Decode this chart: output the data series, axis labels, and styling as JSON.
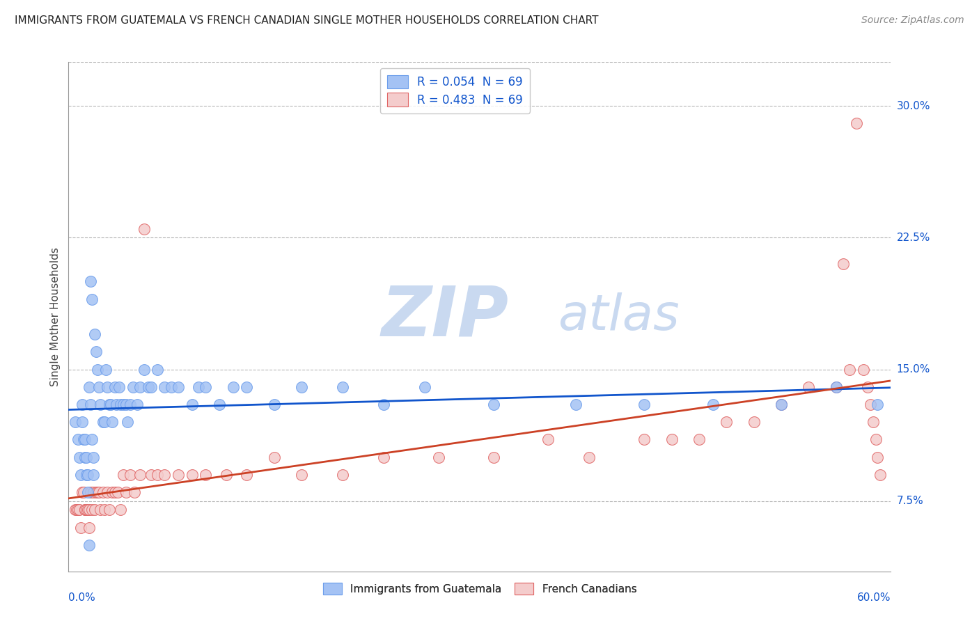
{
  "title": "IMMIGRANTS FROM GUATEMALA VS FRENCH CANADIAN SINGLE MOTHER HOUSEHOLDS CORRELATION CHART",
  "source": "Source: ZipAtlas.com",
  "ylabel": "Single Mother Households",
  "ytick_labels": [
    "7.5%",
    "15.0%",
    "22.5%",
    "30.0%"
  ],
  "ytick_values": [
    0.075,
    0.15,
    0.225,
    0.3
  ],
  "xlim": [
    0.0,
    0.6
  ],
  "ylim": [
    0.035,
    0.325
  ],
  "blue_label": "Immigrants from Guatemala",
  "pink_label": "French Canadians",
  "blue_R": "0.054",
  "pink_R": "0.483",
  "blue_N": "69",
  "pink_N": "69",
  "blue_color": "#a4c2f4",
  "pink_color": "#f4cccc",
  "blue_edge_color": "#6d9eeb",
  "pink_edge_color": "#e06666",
  "blue_line_color": "#1155cc",
  "pink_line_color": "#cc4125",
  "label_color": "#1155cc",
  "watermark_zip_color": "#c9d9f0",
  "watermark_atlas_color": "#c9d9f0",
  "background_color": "#ffffff",
  "grid_color": "#b7b7b7",
  "axis_color": "#999999",
  "blue_x": [
    0.005,
    0.007,
    0.008,
    0.009,
    0.01,
    0.01,
    0.011,
    0.012,
    0.012,
    0.013,
    0.013,
    0.014,
    0.014,
    0.015,
    0.015,
    0.016,
    0.016,
    0.017,
    0.017,
    0.018,
    0.018,
    0.019,
    0.02,
    0.021,
    0.022,
    0.023,
    0.025,
    0.026,
    0.027,
    0.028,
    0.03,
    0.031,
    0.032,
    0.034,
    0.035,
    0.037,
    0.038,
    0.04,
    0.042,
    0.043,
    0.045,
    0.047,
    0.05,
    0.052,
    0.055,
    0.058,
    0.06,
    0.065,
    0.07,
    0.075,
    0.08,
    0.09,
    0.095,
    0.1,
    0.11,
    0.12,
    0.13,
    0.15,
    0.17,
    0.2,
    0.23,
    0.26,
    0.31,
    0.37,
    0.42,
    0.47,
    0.52,
    0.56,
    0.59
  ],
  "blue_y": [
    0.12,
    0.11,
    0.1,
    0.09,
    0.13,
    0.12,
    0.11,
    0.11,
    0.1,
    0.1,
    0.09,
    0.09,
    0.08,
    0.05,
    0.14,
    0.13,
    0.2,
    0.19,
    0.11,
    0.1,
    0.09,
    0.17,
    0.16,
    0.15,
    0.14,
    0.13,
    0.12,
    0.12,
    0.15,
    0.14,
    0.13,
    0.13,
    0.12,
    0.14,
    0.13,
    0.14,
    0.13,
    0.13,
    0.13,
    0.12,
    0.13,
    0.14,
    0.13,
    0.14,
    0.15,
    0.14,
    0.14,
    0.15,
    0.14,
    0.14,
    0.14,
    0.13,
    0.14,
    0.14,
    0.13,
    0.14,
    0.14,
    0.13,
    0.14,
    0.14,
    0.13,
    0.14,
    0.13,
    0.13,
    0.13,
    0.13,
    0.13,
    0.14,
    0.13
  ],
  "pink_x": [
    0.005,
    0.006,
    0.007,
    0.008,
    0.009,
    0.01,
    0.011,
    0.012,
    0.012,
    0.013,
    0.014,
    0.015,
    0.015,
    0.016,
    0.017,
    0.018,
    0.019,
    0.02,
    0.021,
    0.022,
    0.023,
    0.025,
    0.026,
    0.028,
    0.03,
    0.032,
    0.034,
    0.036,
    0.038,
    0.04,
    0.042,
    0.045,
    0.048,
    0.052,
    0.055,
    0.06,
    0.065,
    0.07,
    0.08,
    0.09,
    0.1,
    0.115,
    0.13,
    0.15,
    0.17,
    0.2,
    0.23,
    0.27,
    0.31,
    0.35,
    0.38,
    0.42,
    0.44,
    0.46,
    0.48,
    0.5,
    0.52,
    0.54,
    0.56,
    0.565,
    0.57,
    0.575,
    0.58,
    0.583,
    0.585,
    0.587,
    0.589,
    0.59,
    0.592
  ],
  "pink_y": [
    0.07,
    0.07,
    0.07,
    0.07,
    0.06,
    0.08,
    0.08,
    0.07,
    0.07,
    0.07,
    0.07,
    0.07,
    0.06,
    0.08,
    0.07,
    0.08,
    0.07,
    0.08,
    0.08,
    0.08,
    0.07,
    0.08,
    0.07,
    0.08,
    0.07,
    0.08,
    0.08,
    0.08,
    0.07,
    0.09,
    0.08,
    0.09,
    0.08,
    0.09,
    0.23,
    0.09,
    0.09,
    0.09,
    0.09,
    0.09,
    0.09,
    0.09,
    0.09,
    0.1,
    0.09,
    0.09,
    0.1,
    0.1,
    0.1,
    0.11,
    0.1,
    0.11,
    0.11,
    0.11,
    0.12,
    0.12,
    0.13,
    0.14,
    0.14,
    0.21,
    0.15,
    0.29,
    0.15,
    0.14,
    0.13,
    0.12,
    0.11,
    0.1,
    0.09
  ]
}
